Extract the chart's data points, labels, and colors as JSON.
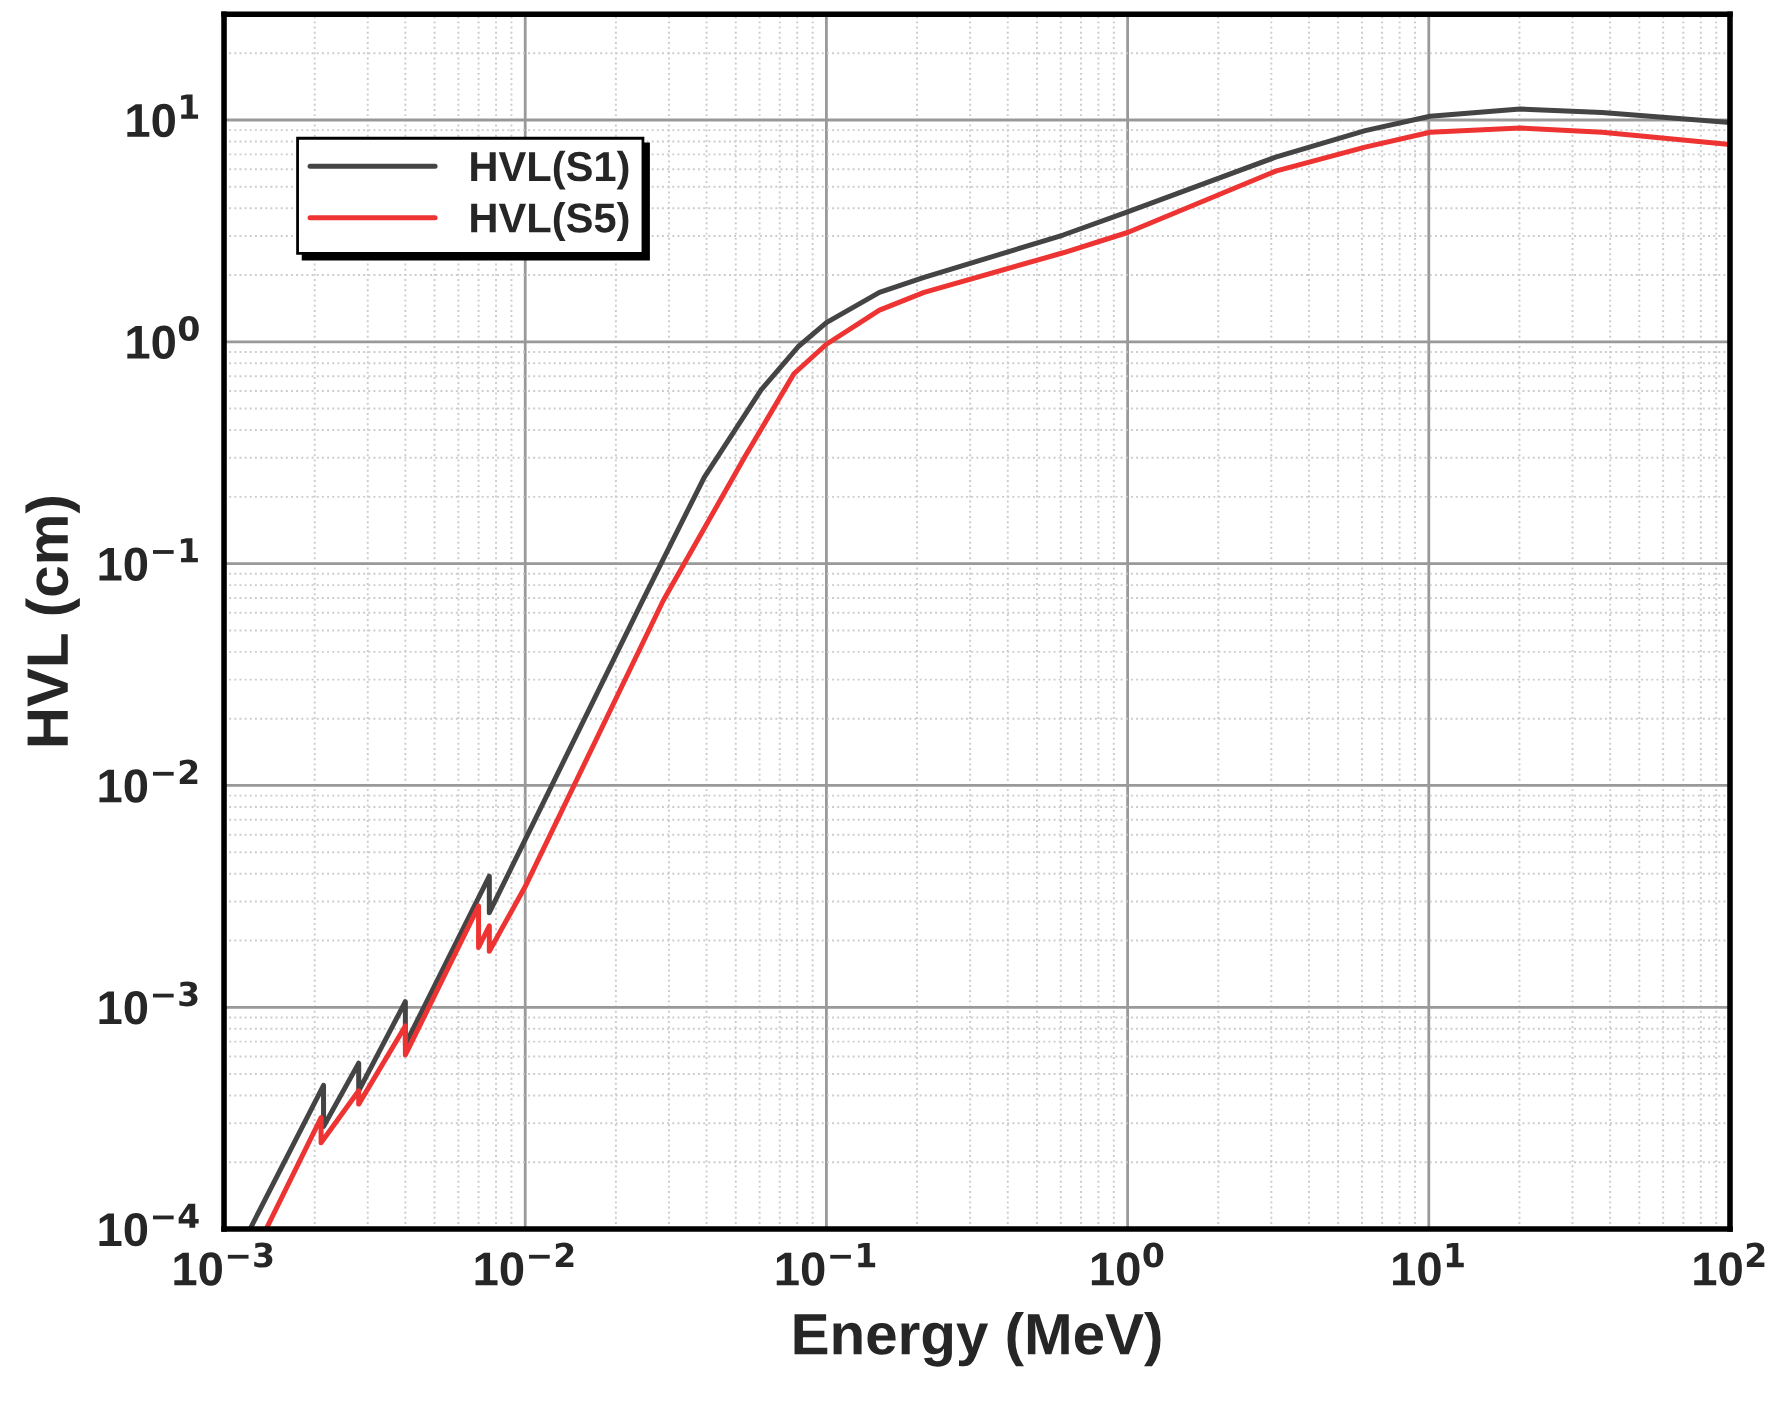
{
  "chart_data": {
    "type": "line",
    "xlabel": "Energy (MeV)",
    "ylabel": "HVL (cm)",
    "log": "xy",
    "grid": true,
    "legend": "top left",
    "line_style": "solid",
    "marker": "none",
    "xlim": [
      0.001,
      100
    ],
    "ylim": [
      0.0001,
      30
    ],
    "xticks": [
      {
        "value": 0.001,
        "label": "10$^{−3}$"
      },
      {
        "value": 0.01,
        "label": "10$^{−2}$"
      },
      {
        "value": 0.1,
        "label": "10$^{−1}$"
      },
      {
        "value": 1,
        "label": "10$^{0}$"
      },
      {
        "value": 10,
        "label": "10$^{1}$"
      },
      {
        "value": 100,
        "label": "10$^{2}$"
      }
    ],
    "yticks": [
      {
        "value": 0.0001,
        "label": "10$^{−4}$"
      },
      {
        "value": 0.001,
        "label": "10$^{−3}$"
      },
      {
        "value": 0.01,
        "label": "10$^{−2}$"
      },
      {
        "value": 0.1,
        "label": "10$^{−1}$"
      },
      {
        "value": 1,
        "label": "10$^{0}$"
      },
      {
        "value": 10,
        "label": "10$^{1}$"
      }
    ],
    "series": [
      {
        "name": "HVL(S1)",
        "color": "#444444",
        "x": [
          0.00122,
          0.00214,
          0.00214,
          0.0028,
          0.0028,
          0.004,
          0.004,
          0.0076,
          0.0076,
          0.01,
          0.0245,
          0.0393,
          0.0607,
          0.0805,
          0.1,
          0.15,
          0.211,
          0.611,
          1.0,
          3.1,
          6.15,
          10.1,
          20.1,
          37.6,
          100
        ],
        "values": [
          0.0001,
          0.000445,
          0.00029,
          0.00056,
          0.00042,
          0.00106,
          0.00068,
          0.0039,
          0.00267,
          0.0057,
          0.068,
          0.245,
          0.607,
          0.95,
          1.22,
          1.67,
          1.95,
          3.03,
          3.85,
          6.8,
          8.95,
          10.4,
          11.2,
          10.8,
          9.75
        ]
      },
      {
        "name": "HVL(S5)",
        "color": "#ee3333",
        "x": [
          0.00138,
          0.0021,
          0.0021,
          0.0028,
          0.0028,
          0.004,
          0.004,
          0.007,
          0.007,
          0.0076,
          0.0076,
          0.01,
          0.0287,
          0.0536,
          0.078,
          0.1,
          0.15,
          0.211,
          0.611,
          1.0,
          3.1,
          6.15,
          10.1,
          20.1,
          37.6,
          100
        ],
        "values": [
          0.0001,
          0.000318,
          0.000245,
          0.00042,
          0.000366,
          0.000824,
          0.00061,
          0.00286,
          0.00186,
          0.00233,
          0.00179,
          0.0035,
          0.068,
          0.303,
          0.718,
          0.975,
          1.39,
          1.67,
          2.52,
          3.11,
          5.88,
          7.55,
          8.8,
          9.2,
          8.8,
          7.76
        ]
      }
    ]
  }
}
